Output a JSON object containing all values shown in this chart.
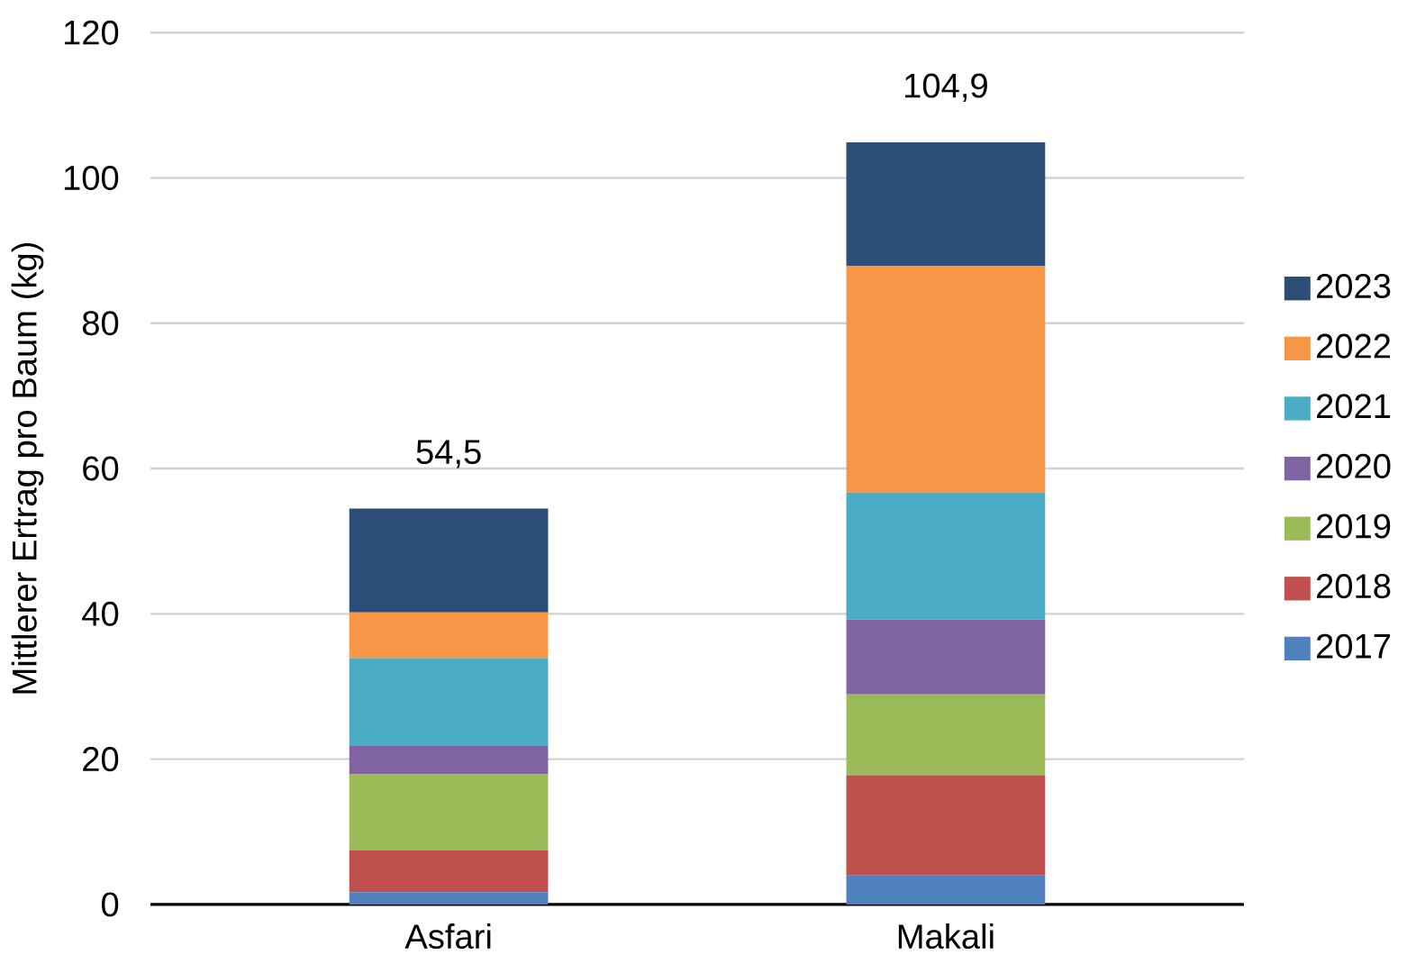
{
  "chart_data": {
    "type": "bar",
    "stacked": true,
    "ylabel": "Mittlerer Ertrag pro Baum (kg)",
    "categories": [
      "Asfari",
      "Makali"
    ],
    "series": [
      {
        "name": "2017",
        "color": "#4f81bd",
        "values": [
          1.7,
          4.0
        ]
      },
      {
        "name": "2018",
        "color": "#c0504d",
        "values": [
          5.8,
          13.8
        ]
      },
      {
        "name": "2019",
        "color": "#9bbb59",
        "values": [
          10.4,
          11.1
        ]
      },
      {
        "name": "2020",
        "color": "#8064a2",
        "values": [
          3.9,
          10.3
        ]
      },
      {
        "name": "2021",
        "color": "#4bacc6",
        "values": [
          12.1,
          17.5
        ]
      },
      {
        "name": "2022",
        "color": "#f79646",
        "values": [
          6.3,
          31.2
        ]
      },
      {
        "name": "2023",
        "color": "#2c4d75",
        "values": [
          14.3,
          17.0
        ]
      }
    ],
    "totals": [
      "54,5",
      "104,9"
    ],
    "ylim": [
      0,
      120
    ],
    "yticks": [
      0,
      20,
      40,
      60,
      80,
      100,
      120
    ],
    "grid": "y",
    "legend": "right"
  }
}
